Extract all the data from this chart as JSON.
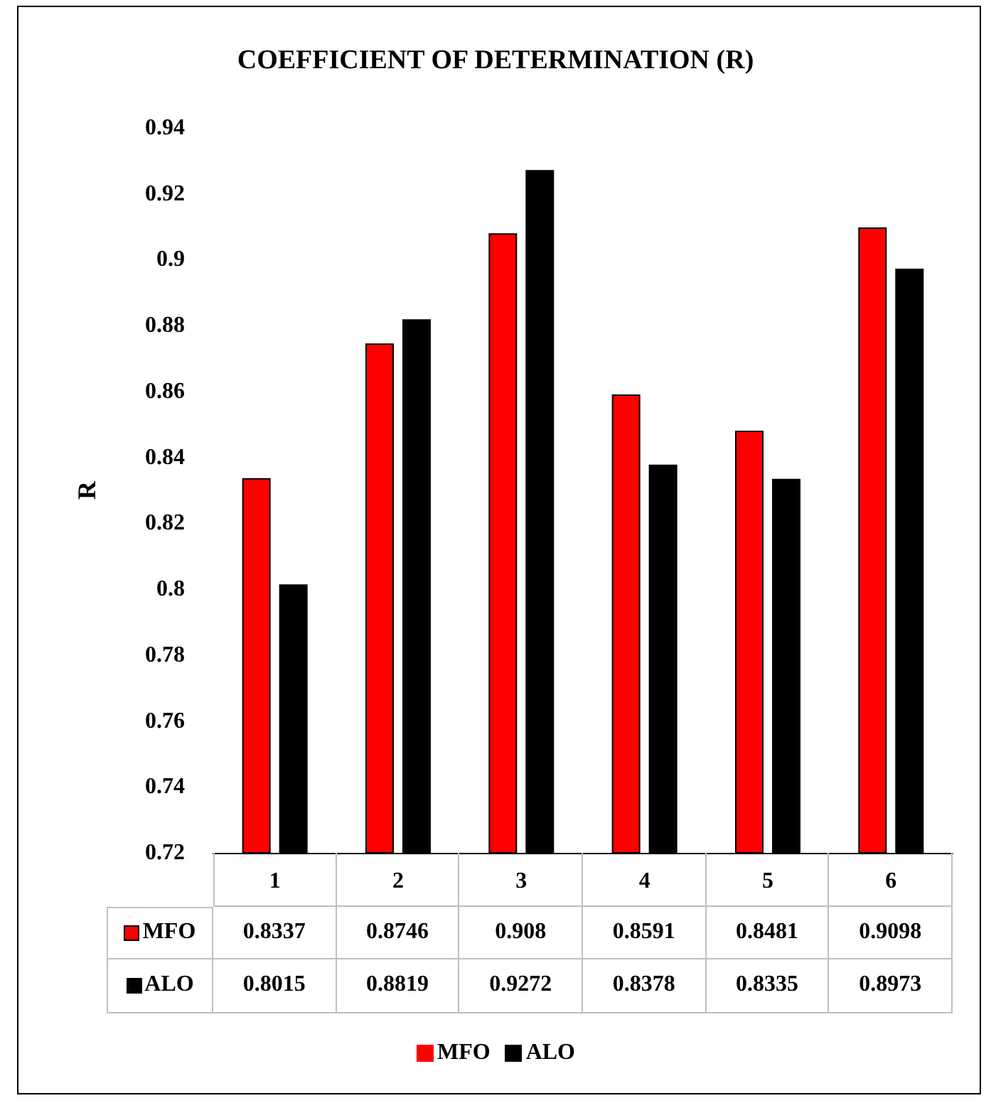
{
  "chart_data": {
    "type": "bar",
    "title": "COEFFICIENT OF DETERMINATION (R)",
    "ylabel": "R",
    "categories": [
      "1",
      "2",
      "3",
      "4",
      "5",
      "6"
    ],
    "series": [
      {
        "name": "MFO",
        "color": "#ff0000",
        "values": [
          0.8337,
          0.8746,
          0.908,
          0.8591,
          0.8481,
          0.9098
        ]
      },
      {
        "name": "ALO",
        "color": "#000000",
        "values": [
          0.8015,
          0.8819,
          0.9272,
          0.8378,
          0.8335,
          0.8973
        ]
      }
    ],
    "ylim": [
      0.72,
      0.94
    ],
    "yticks": [
      0.72,
      0.74,
      0.76,
      0.78,
      0.8,
      0.82,
      0.84,
      0.86,
      0.88,
      0.9,
      0.92,
      0.94
    ],
    "grid": false,
    "legend": "bottom",
    "data_labels": true
  }
}
